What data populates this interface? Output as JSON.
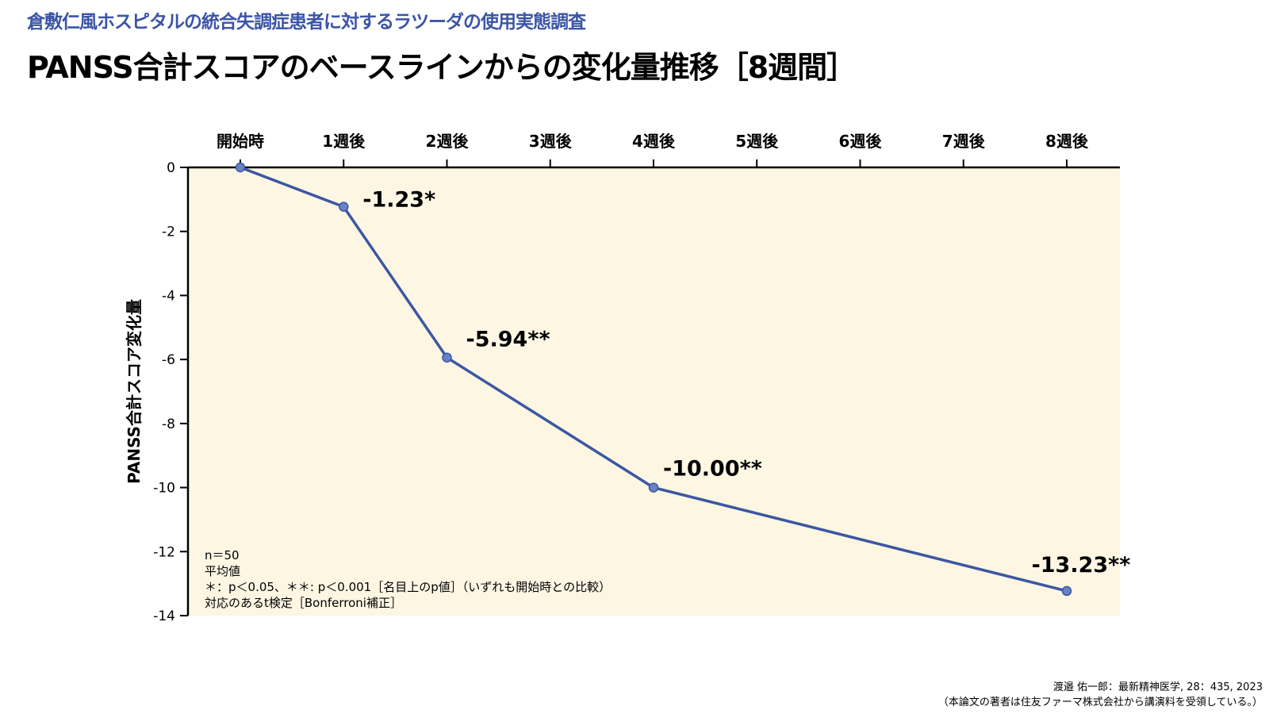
{
  "header": {
    "subtitle": "倉敷仁風ホスピタルの統合失調症患者に対するラツーダの使用実態調査",
    "title": "PANSS合計スコアのベースラインからの変化量推移［8週間］"
  },
  "chart_data": {
    "type": "line",
    "categories": [
      "開始時",
      "1週後",
      "2週後",
      "3週後",
      "4週後",
      "5週後",
      "6週後",
      "7週後",
      "8週後"
    ],
    "series": [
      {
        "points": [
          {
            "category": "開始時",
            "value": 0
          },
          {
            "category": "1週後",
            "value": -1.23,
            "label": "-1.23*"
          },
          {
            "category": "2週後",
            "value": -5.94,
            "label": "-5.94**"
          },
          {
            "category": "4週後",
            "value": -10.0,
            "label": "-10.00**"
          },
          {
            "category": "8週後",
            "value": -13.23,
            "label": "-13.23**"
          }
        ]
      }
    ],
    "ylabel": "PANSS合計スコア変化量",
    "ylim": [
      -14,
      0
    ],
    "yticks": [
      0,
      -2,
      -4,
      -6,
      -8,
      -10,
      -12,
      -14
    ],
    "ytick_labels": [
      "0",
      "-2",
      "-4",
      "-6",
      "-8",
      "-10",
      "-12",
      "-14"
    ],
    "x_axis_position": "top",
    "grid": false,
    "colors": {
      "line": "#3b57a3",
      "plot_background": "#fdf6e3"
    }
  },
  "notes": [
    "n＝50",
    "平均値",
    "＊：p＜0.05、＊＊: p＜0.001［名目上のp値］（いずれも開始時との比較）",
    "対応のあるt検定［Bonferroni補正］"
  ],
  "footer": {
    "citation": "渡邉 佑一郎：最新精神医学, 28：435, 2023",
    "disclosure": "（本論文の著者は住友ファーマ株式会社から講演料を受領している。）"
  }
}
